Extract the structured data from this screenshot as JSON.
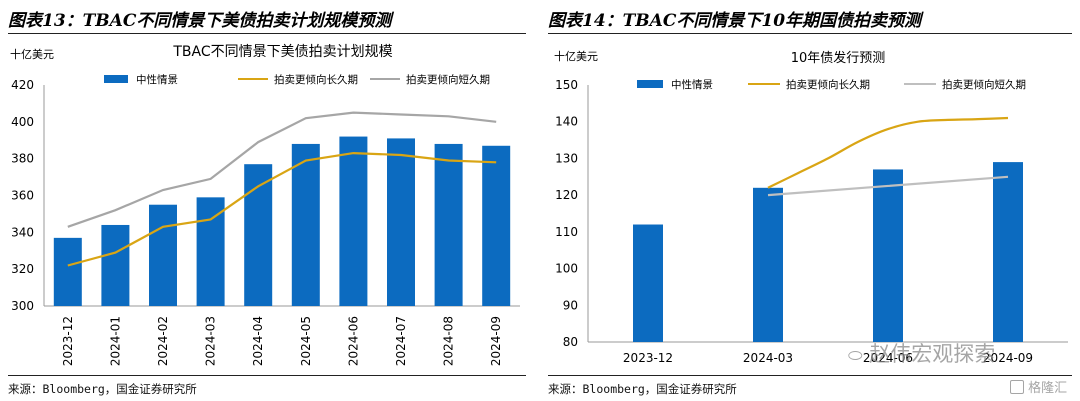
{
  "left": {
    "figure_title": "图表13：TBAC不同情景下美债拍卖计划规模预测",
    "source": "来源：Bloomberg，国金证券研究所"
  },
  "right": {
    "figure_title": "图表14：TBAC不同情景下10年期国债拍卖预测",
    "source": "来源：Bloomberg，国金证券研究所"
  },
  "watermark": {
    "text": "赵伟宏观探索",
    "badge": "格隆汇"
  },
  "chart_data": [
    {
      "type": "bar",
      "title": "TBAC不同情景下美债拍卖计划规模",
      "unit_label": "十亿美元",
      "categories": [
        "2023-12",
        "2024-01",
        "2024-02",
        "2024-03",
        "2024-04",
        "2024-05",
        "2024-06",
        "2024-07",
        "2024-08",
        "2024-09"
      ],
      "ylim": [
        300,
        420
      ],
      "yticks": [
        300,
        320,
        340,
        360,
        380,
        400,
        420
      ],
      "legend_position": "top",
      "grid": false,
      "series": [
        {
          "name": "中性情景",
          "kind": "bar",
          "color": "#0c6bc0",
          "values": [
            337,
            344,
            355,
            359,
            377,
            388,
            392,
            391,
            388,
            387
          ]
        },
        {
          "name": "拍卖更倾向长久期",
          "kind": "line",
          "color": "#d9a514",
          "values": [
            322,
            329,
            343,
            347,
            365,
            379,
            383,
            382,
            379,
            378
          ]
        },
        {
          "name": "拍卖更倾向短久期",
          "kind": "line",
          "color": "#a6a6a6",
          "values": [
            343,
            352,
            363,
            369,
            389,
            402,
            405,
            404,
            403,
            400
          ]
        }
      ]
    },
    {
      "type": "bar",
      "title": "10年债发行预测",
      "unit_label": "十亿美元",
      "x": [
        0,
        1,
        2,
        3
      ],
      "xtick_labels": [
        "2023-12",
        "2024-03",
        "2024-06",
        "2024-09"
      ],
      "ylim": [
        80,
        150
      ],
      "yticks": [
        80,
        90,
        100,
        110,
        120,
        130,
        140,
        150
      ],
      "legend_position": "top",
      "grid": false,
      "series": [
        {
          "name": "中性情景",
          "kind": "bar",
          "color": "#0c6bc0",
          "x": [
            0,
            1,
            2,
            3
          ],
          "values": [
            112,
            122,
            127,
            129
          ]
        },
        {
          "name": "拍卖更倾向长久期",
          "kind": "line",
          "color": "#d9a514",
          "x": [
            1,
            1.25,
            1.5,
            1.75,
            2,
            2.25,
            2.5,
            2.75,
            3
          ],
          "values": [
            122,
            126,
            130,
            134.5,
            138,
            140,
            140.5,
            140.7,
            141
          ]
        },
        {
          "name": "拍卖更倾向短久期",
          "kind": "line",
          "color": "#bfbfbf",
          "x": [
            1,
            3
          ],
          "values": [
            120,
            125
          ]
        }
      ]
    }
  ]
}
